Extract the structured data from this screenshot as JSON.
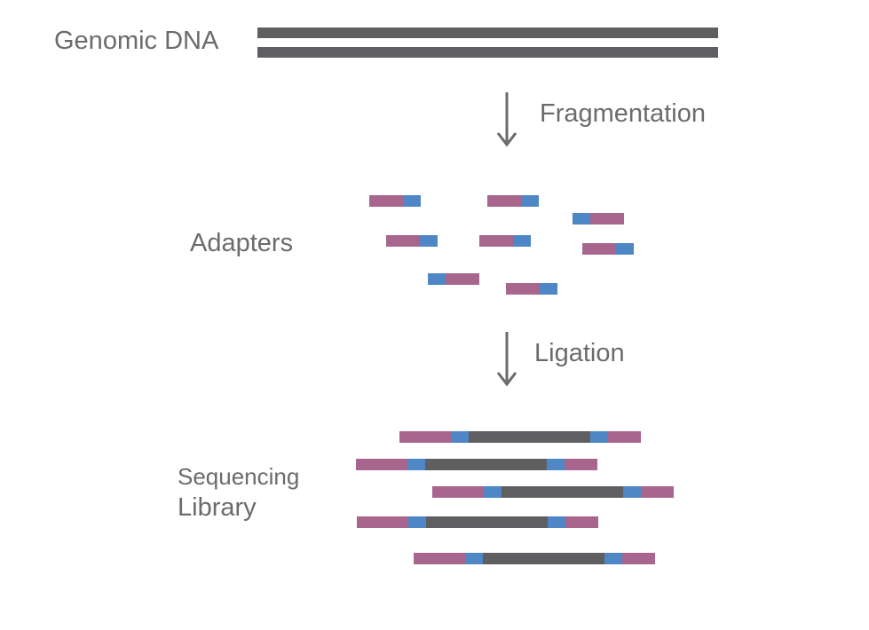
{
  "labels": {
    "genomic_dna": "Genomic DNA",
    "fragmentation": "Fragmentation",
    "adapters": "Adapters",
    "ligation": "Ligation",
    "sequencing_line1": "Sequencing",
    "sequencing_line2": "Library"
  },
  "colors": {
    "dna": "#5f5f61",
    "adapter_pink": "#a8668f",
    "adapter_blue": "#4f86c6",
    "arrow": "#6b6b6d",
    "text": "#6b6b6d"
  },
  "steps": [
    "fragmentation",
    "ligation"
  ],
  "icons": [
    "down-arrow-icon",
    "down-arrow-icon"
  ]
}
